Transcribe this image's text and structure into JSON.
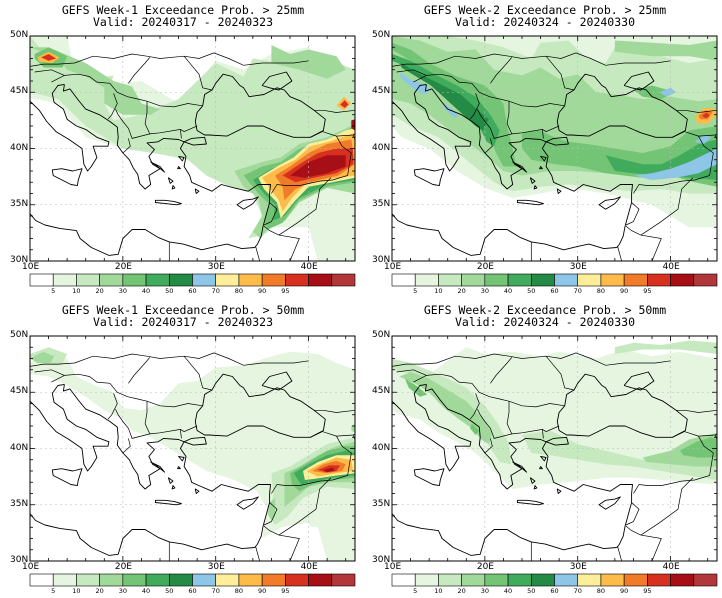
{
  "panels": [
    {
      "id": "p1",
      "title": "GEFS Week-1 Exceedance Prob. > 25mm",
      "valid": "Valid: 20240317 - 20240323"
    },
    {
      "id": "p2",
      "title": "GEFS Week-2 Exceedance Prob. > 25mm",
      "valid": "Valid: 20240324 - 20240330"
    },
    {
      "id": "p3",
      "title": "GEFS Week-1 Exceedance Prob. > 50mm",
      "valid": "Valid: 20240317 - 20240323"
    },
    {
      "id": "p4",
      "title": "GEFS Week-2 Exceedance Prob. > 50mm",
      "valid": "Valid: 20240324 - 20240330"
    }
  ],
  "lat_labels": [
    "50N",
    "45N",
    "40N",
    "35N",
    "30N"
  ],
  "lon_labels": [
    "10E",
    "20E",
    "30E",
    "40E"
  ],
  "colorbar": {
    "labels": [
      "5",
      "10",
      "20",
      "30",
      "40",
      "50",
      "60",
      "70",
      "80",
      "90",
      "95"
    ],
    "colors": [
      "#ffffff",
      "#e5f5e0",
      "#c7e9c0",
      "#a1d99b",
      "#74c476",
      "#41ab5d",
      "#238b45",
      "#8ec6e8",
      "#ffee99",
      "#fdbb4a",
      "#f07b28",
      "#d7301f",
      "#a50f15",
      "#b2373a"
    ]
  },
  "colors": {
    "land_line": "#000000",
    "grid": "#bbbbbb"
  }
}
